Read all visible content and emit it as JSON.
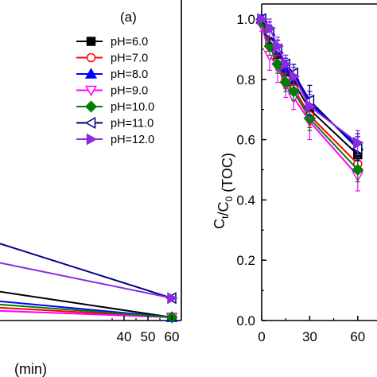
{
  "chart_data": [
    {
      "type": "line",
      "panel_label": "(a)",
      "xlabel": "(min)",
      "ylabel": "",
      "xlim": [
        -12,
        64
      ],
      "ylim": [
        0,
        1.0
      ],
      "xticks": [
        40,
        50,
        60
      ],
      "legend_position": "top-right",
      "series": [
        {
          "name": "pH=6.0",
          "color": "#000000",
          "marker": "square",
          "x": [
            -12,
            60
          ],
          "y": [
            0.09,
            0.01
          ]
        },
        {
          "name": "pH=7.0",
          "color": "#ff0000",
          "marker": "circle-open",
          "x": [
            -12,
            60
          ],
          "y": [
            0.04,
            0.01
          ]
        },
        {
          "name": "pH=8.0",
          "color": "#0000ff",
          "marker": "triangle-up",
          "x": [
            -12,
            60
          ],
          "y": [
            0.06,
            0.01
          ]
        },
        {
          "name": "pH=9.0",
          "color": "#ff00ff",
          "marker": "triangle-down-open",
          "x": [
            -12,
            60
          ],
          "y": [
            0.03,
            0.01
          ]
        },
        {
          "name": "pH=10.0",
          "color": "#008000",
          "marker": "diamond",
          "x": [
            -12,
            60
          ],
          "y": [
            0.05,
            0.01
          ]
        },
        {
          "name": "pH=11.0",
          "color": "#000080",
          "marker": "triangle-left-open",
          "x": [
            -12,
            60
          ],
          "y": [
            0.24,
            0.07
          ]
        },
        {
          "name": "pH=12.0",
          "color": "#8b2be2",
          "marker": "triangle-right",
          "x": [
            -12,
            60
          ],
          "y": [
            0.18,
            0.07
          ]
        }
      ]
    },
    {
      "type": "line",
      "xlabel": "",
      "ylabel": "C_t/C_0 (TOC)",
      "ylabel_parts": {
        "c1": "C",
        "sub1": "t",
        "slash": "/C",
        "sub2": "0",
        "rest": " (TOC)"
      },
      "xlim": [
        0,
        75
      ],
      "ylim": [
        0,
        1.05
      ],
      "xticks": [
        0,
        30,
        60
      ],
      "xtick_labels": [
        "0",
        "30",
        "60"
      ],
      "yticks": [
        0.0,
        0.2,
        0.4,
        0.6,
        0.8,
        1.0
      ],
      "ytick_labels": [
        "0.0",
        "0.2",
        "0.4",
        "0.6",
        "0.8",
        "1.0"
      ],
      "series": [
        {
          "name": "pH=6.0",
          "x": [
            0,
            5,
            10,
            15,
            20,
            30,
            60
          ],
          "y": [
            1.0,
            0.93,
            0.88,
            0.82,
            0.79,
            0.7,
            0.55
          ],
          "err": [
            0.01,
            0.03,
            0.03,
            0.03,
            0.03,
            0.04,
            0.04
          ]
        },
        {
          "name": "pH=7.0",
          "x": [
            0,
            5,
            10,
            15,
            20,
            30,
            60
          ],
          "y": [
            0.99,
            0.92,
            0.86,
            0.8,
            0.77,
            0.68,
            0.52
          ],
          "err": [
            0.01,
            0.03,
            0.03,
            0.03,
            0.03,
            0.04,
            0.04
          ]
        },
        {
          "name": "pH=8.0",
          "x": [
            0,
            5,
            10,
            15,
            20,
            30,
            60
          ],
          "y": [
            1.0,
            0.96,
            0.9,
            0.84,
            0.81,
            0.72,
            0.58
          ],
          "err": [
            0.01,
            0.03,
            0.03,
            0.03,
            0.03,
            0.04,
            0.04
          ]
        },
        {
          "name": "pH=9.0",
          "x": [
            0,
            5,
            10,
            15,
            20,
            30,
            60
          ],
          "y": [
            0.98,
            0.88,
            0.84,
            0.78,
            0.74,
            0.66,
            0.48
          ],
          "err": [
            0.02,
            0.05,
            0.05,
            0.04,
            0.04,
            0.06,
            0.05
          ]
        },
        {
          "name": "pH=10.0",
          "x": [
            0,
            5,
            10,
            15,
            20,
            30,
            60
          ],
          "y": [
            0.99,
            0.91,
            0.85,
            0.79,
            0.76,
            0.67,
            0.5
          ],
          "err": [
            0.01,
            0.03,
            0.03,
            0.03,
            0.03,
            0.04,
            0.04
          ]
        },
        {
          "name": "pH=11.0",
          "x": [
            0,
            5,
            10,
            15,
            20,
            30,
            60
          ],
          "y": [
            1.0,
            0.95,
            0.9,
            0.85,
            0.82,
            0.73,
            0.57
          ],
          "err": [
            0.01,
            0.03,
            0.03,
            0.03,
            0.03,
            0.05,
            0.04
          ]
        },
        {
          "name": "pH=12.0",
          "x": [
            0,
            5,
            10,
            15,
            20,
            30,
            60
          ],
          "y": [
            1.0,
            0.97,
            0.91,
            0.85,
            0.81,
            0.71,
            0.59
          ],
          "err": [
            0.01,
            0.03,
            0.03,
            0.03,
            0.03,
            0.04,
            0.04
          ]
        }
      ]
    }
  ]
}
